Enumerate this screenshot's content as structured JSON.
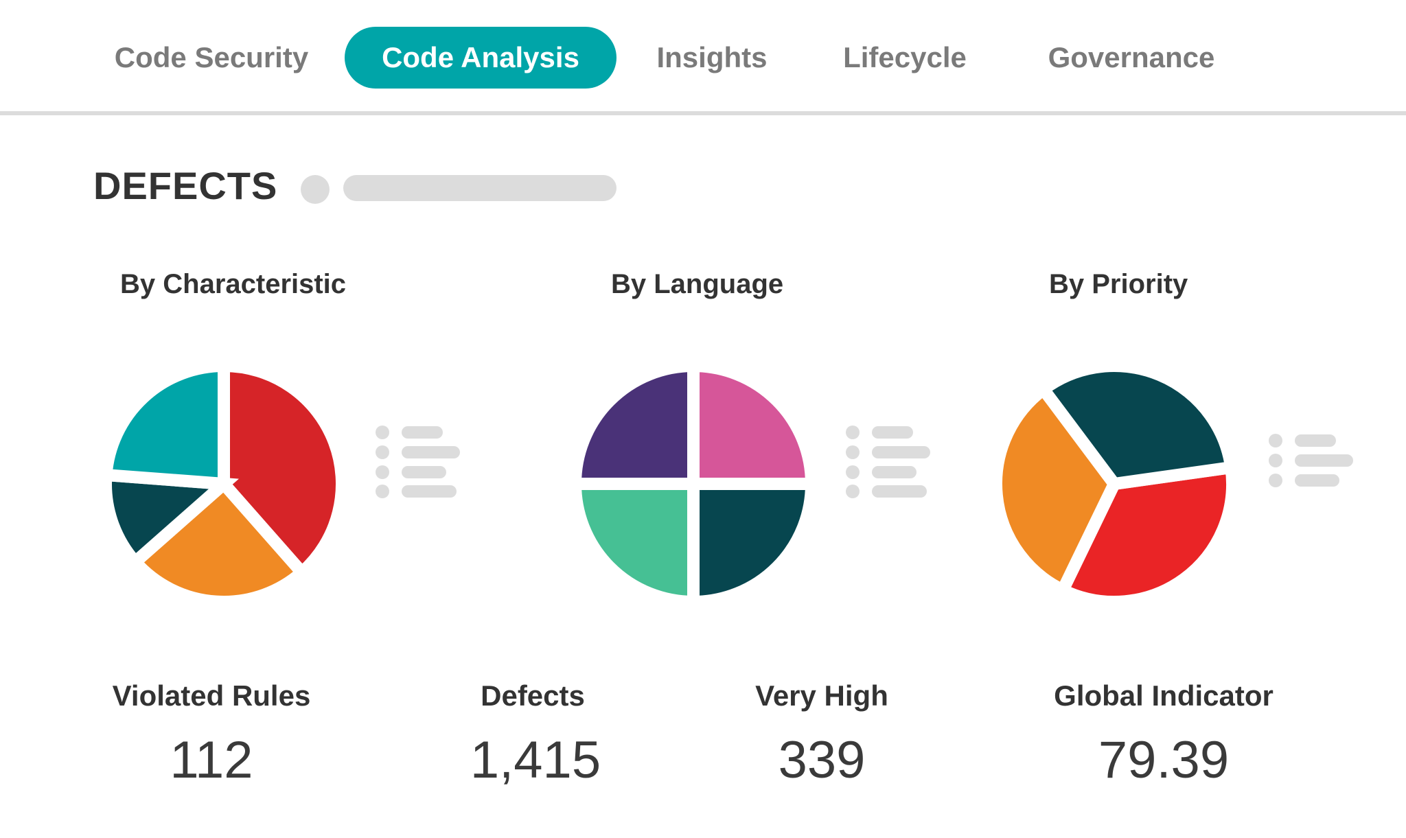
{
  "tabs": [
    {
      "label": "Code Security",
      "active": false
    },
    {
      "label": "Code Analysis",
      "active": true
    },
    {
      "label": "Insights",
      "active": false
    },
    {
      "label": "Lifecycle",
      "active": false
    },
    {
      "label": "Governance",
      "active": false
    }
  ],
  "section": {
    "title": "DEFECTS"
  },
  "charts": [
    {
      "title": "By Characteristic"
    },
    {
      "title": "By Language"
    },
    {
      "title": "By Priority"
    }
  ],
  "stats": [
    {
      "label": "Violated Rules",
      "value": "112"
    },
    {
      "label": "Defects",
      "value": "1,415"
    },
    {
      "label": "Very High",
      "value": "339"
    },
    {
      "label": "Global Indicator",
      "value": "79.39"
    }
  ],
  "colors": {
    "accent": "#00a5a8",
    "red": "#d62428",
    "orange": "#f08a24",
    "teal": "#00a5a8",
    "dark_teal": "#07464f",
    "purple": "#4a3278",
    "pink": "#d65699",
    "green": "#46c094",
    "bright_red": "#ea2426"
  },
  "chart_data": [
    {
      "type": "pie",
      "title": "By Characteristic",
      "values": [
        38.5,
        25,
        12.7,
        23.8
      ],
      "colors": [
        "#d62428",
        "#f08a24",
        "#07464f",
        "#00a5a8"
      ]
    },
    {
      "type": "pie",
      "title": "By Language",
      "values": [
        25,
        25,
        25,
        25
      ],
      "colors": [
        "#d65699",
        "#07464f",
        "#46c094",
        "#4a3278"
      ]
    },
    {
      "type": "pie",
      "title": "By Priority",
      "values": [
        34.4,
        32.6,
        33.0
      ],
      "colors": [
        "#ea2426",
        "#f08a24",
        "#07464f"
      ]
    }
  ]
}
